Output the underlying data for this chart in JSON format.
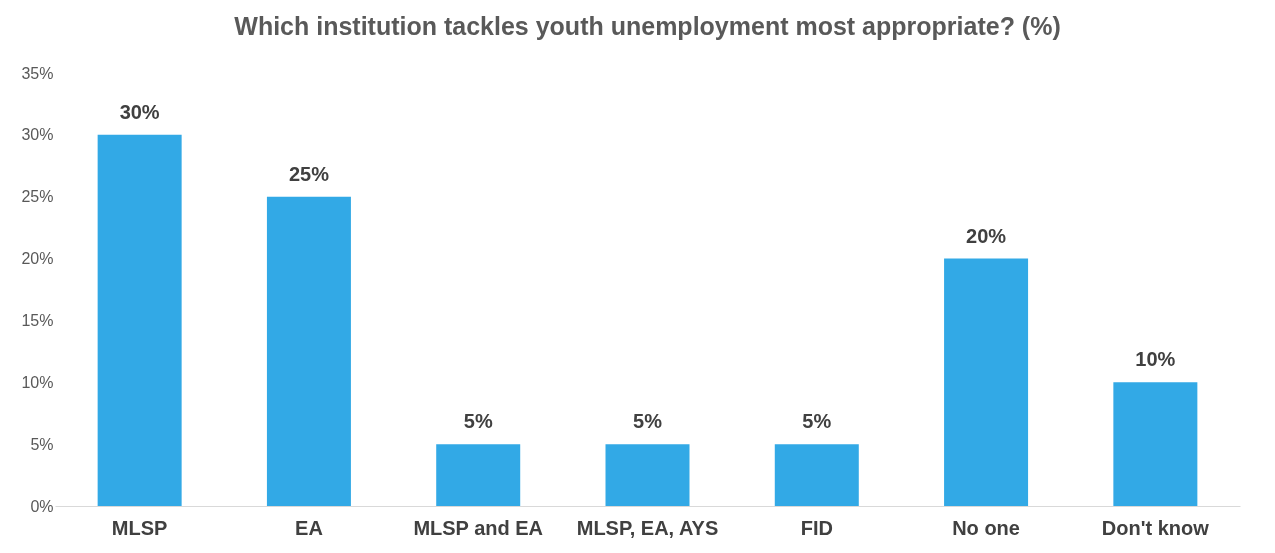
{
  "chart_data": {
    "type": "bar",
    "title": "Which institution tackles youth unemployment most appropriate? (%)",
    "categories": [
      "MLSP",
      "EA",
      "MLSP and EA",
      "MLSP, EA, AYS",
      "FID",
      "No one",
      "Don't know"
    ],
    "values": [
      30,
      25,
      5,
      5,
      5,
      20,
      10
    ],
    "value_labels": [
      "30%",
      "25%",
      "5%",
      "5%",
      "5%",
      "20%",
      "10%"
    ],
    "color": "#32a9e6",
    "ylim": [
      0,
      35
    ],
    "yticks": [
      {
        "value": 0,
        "label": "0%"
      },
      {
        "value": 5,
        "label": "5%"
      },
      {
        "value": 10,
        "label": "10%"
      },
      {
        "value": 15,
        "label": "15%"
      },
      {
        "value": 20,
        "label": "20%"
      },
      {
        "value": 25,
        "label": "25%"
      },
      {
        "value": 30,
        "label": "30%"
      },
      {
        "value": 35,
        "label": "35%"
      }
    ],
    "grid": false
  }
}
